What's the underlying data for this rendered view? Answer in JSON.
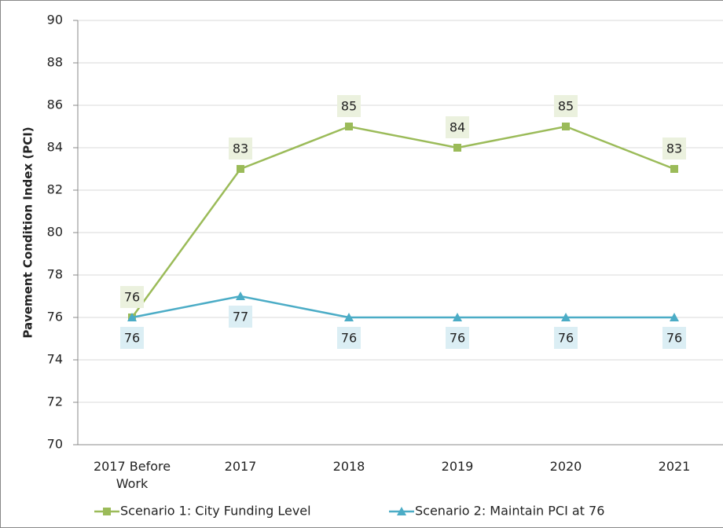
{
  "chart_data": {
    "type": "line",
    "y_label": "Pavement Condition Index (PCI)",
    "categories": [
      "2017 Before Work",
      "2017",
      "2018",
      "2019",
      "2020",
      "2021"
    ],
    "series": [
      {
        "name": "Scenario 1: City Funding Level",
        "color": "#9bbb59",
        "label_bg": "#ebf1de",
        "marker": "square",
        "values": [
          76,
          83,
          85,
          84,
          85,
          83
        ]
      },
      {
        "name": "Scenario 2: Maintain PCI at 76",
        "color": "#4bacc6",
        "label_bg": "#dbeef4",
        "marker": "triangle",
        "values": [
          76,
          77,
          76,
          76,
          76,
          76
        ]
      }
    ],
    "ylim": [
      70,
      90
    ],
    "yticks": [
      70,
      72,
      74,
      76,
      78,
      80,
      82,
      84,
      86,
      88,
      90
    ],
    "grid": true,
    "legend": "bottom"
  }
}
